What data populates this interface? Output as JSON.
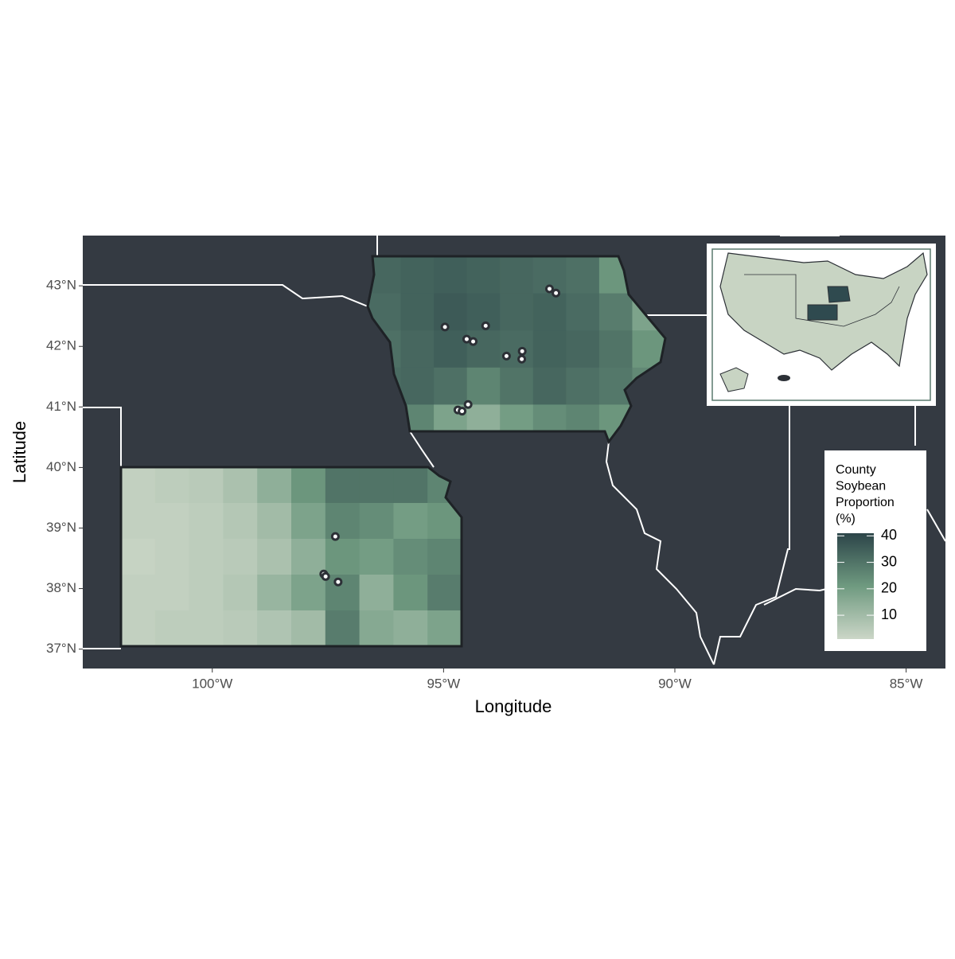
{
  "chart_data": {
    "type": "map",
    "x_label": "Longitude",
    "y_label": "Latitude",
    "xlim": [
      -102.8,
      -84.15
    ],
    "ylim": [
      36.68,
      43.83
    ],
    "xticks": [
      {
        "value": -100,
        "label": "100°W"
      },
      {
        "value": -95,
        "label": "95°W"
      },
      {
        "value": -90,
        "label": "90°W"
      },
      {
        "value": -85,
        "label": "85°W"
      }
    ],
    "yticks": [
      {
        "value": 37,
        "label": "37°N"
      },
      {
        "value": 38,
        "label": "38°N"
      },
      {
        "value": 39,
        "label": "39°N"
      },
      {
        "value": 40,
        "label": "40°N"
      },
      {
        "value": 41,
        "label": "41°N"
      },
      {
        "value": 42,
        "label": "42°N"
      },
      {
        "value": 43,
        "label": "43°N"
      }
    ],
    "grids": [
      {
        "values": [
          [
            33,
            34,
            35,
            34,
            33,
            32,
            31,
            22,
            15
          ],
          [
            32,
            34,
            36,
            35,
            33,
            34,
            32,
            28,
            18
          ],
          [
            31,
            33,
            35,
            33,
            32,
            34,
            33,
            30,
            22
          ],
          [
            32,
            33,
            31,
            26,
            30,
            33,
            31,
            29,
            25
          ],
          [
            30,
            26,
            18,
            14,
            20,
            24,
            26,
            22,
            20
          ]
        ]
      },
      {
        "values": [
          [
            3,
            4,
            5,
            8,
            14,
            22,
            30,
            30,
            30,
            26
          ],
          [
            3,
            3,
            4,
            6,
            10,
            18,
            26,
            24,
            20,
            22
          ],
          [
            2,
            3,
            4,
            5,
            8,
            14,
            22,
            20,
            24,
            26
          ],
          [
            3,
            3,
            4,
            6,
            12,
            18,
            26,
            14,
            22,
            28
          ],
          [
            3,
            4,
            4,
            5,
            7,
            10,
            28,
            16,
            14,
            18
          ]
        ]
      }
    ],
    "points": {
      "x": [
        -94.97,
        -94.5,
        -94.36,
        -94.09,
        -93.64,
        -93.3,
        -93.31,
        -92.71,
        -92.57,
        -94.47,
        -94.69,
        -94.6,
        -97.34,
        -97.59,
        -97.55,
        -97.28
      ],
      "y": [
        42.32,
        42.12,
        42.08,
        42.34,
        41.84,
        41.92,
        41.79,
        42.95,
        42.88,
        41.04,
        40.95,
        40.93,
        38.86,
        38.24,
        38.2,
        38.11
      ]
    },
    "legend": {
      "title": [
        "County",
        "Soybean",
        "Proportion",
        "(%)"
      ],
      "lim": [
        1,
        41
      ],
      "ticks": [
        10,
        20,
        30,
        40
      ],
      "colors": [
        "#cbd6c7",
        "#6f9a80",
        "#2c4549"
      ]
    }
  }
}
